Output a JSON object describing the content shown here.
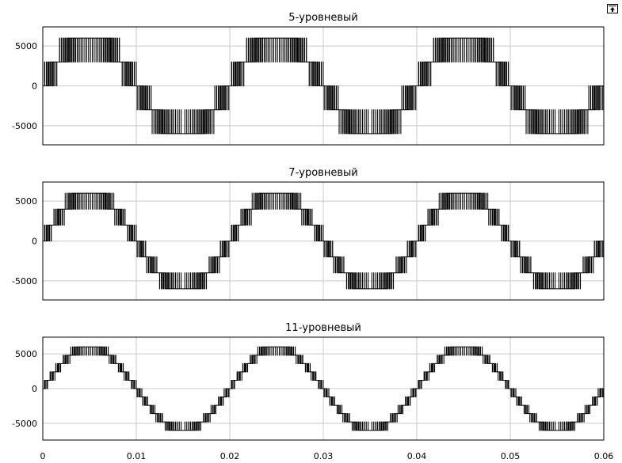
{
  "window": {
    "dock_icon": "undock-icon"
  },
  "x_axis": {
    "range": [
      0,
      0.06
    ],
    "ticks": [
      0,
      0.01,
      0.02,
      0.03,
      0.04,
      0.05,
      0.06
    ],
    "tick_labels": [
      "0",
      "0.01",
      "0.02",
      "0.03",
      "0.04",
      "0.05",
      "0.06"
    ]
  },
  "chart_data": [
    {
      "type": "line",
      "title": "5-уровневый",
      "xlabel": "",
      "ylabel": "",
      "xlim": [
        0,
        0.06
      ],
      "ylim": [
        -7400,
        7400
      ],
      "yticks": [
        -5000,
        0,
        5000
      ],
      "ytick_labels": [
        "-5000",
        "0",
        "5000"
      ],
      "grid": true,
      "fundamental_hz": 50,
      "amplitude": 6000,
      "levels": 5,
      "series": [
        {
          "x_start": 0,
          "x_end": 0.06,
          "waveform": "staircase multilevel PWM",
          "peak": 6000,
          "step": 3000
        }
      ]
    },
    {
      "type": "line",
      "title": "7-уровневый",
      "xlabel": "",
      "ylabel": "",
      "xlim": [
        0,
        0.06
      ],
      "ylim": [
        -7400,
        7400
      ],
      "yticks": [
        -5000,
        0,
        5000
      ],
      "ytick_labels": [
        "-5000",
        "0",
        "5000"
      ],
      "grid": true,
      "fundamental_hz": 50,
      "amplitude": 6000,
      "levels": 7,
      "series": [
        {
          "x_start": 0,
          "x_end": 0.06,
          "waveform": "staircase multilevel PWM",
          "peak": 6000,
          "step": 2000
        }
      ]
    },
    {
      "type": "line",
      "title": "11-уровневый",
      "xlabel": "",
      "ylabel": "",
      "xlim": [
        0,
        0.06
      ],
      "ylim": [
        -7400,
        7400
      ],
      "yticks": [
        -5000,
        0,
        5000
      ],
      "ytick_labels": [
        "-5000",
        "0",
        "5000"
      ],
      "grid": true,
      "fundamental_hz": 50,
      "amplitude": 6000,
      "levels": 11,
      "series": [
        {
          "x_start": 0,
          "x_end": 0.06,
          "waveform": "staircase multilevel PWM",
          "peak": 6000,
          "step": 1200
        }
      ]
    }
  ]
}
